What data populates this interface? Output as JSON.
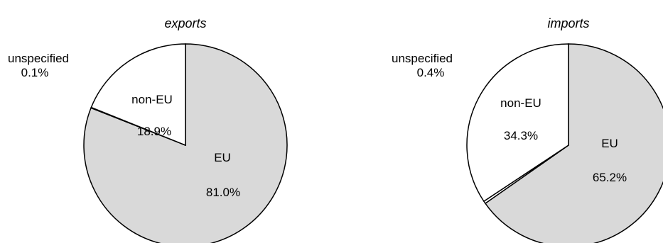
{
  "chart_data": [
    {
      "type": "pie",
      "title": "exports",
      "slices": [
        {
          "label": "EU",
          "value": 81.0,
          "value_label": "81.0%",
          "color": "#d9d9d9"
        },
        {
          "label": "unspecified",
          "value": 0.1,
          "value_label": "0.1%",
          "color": "#ffffff"
        },
        {
          "label": "non-EU",
          "value": 18.9,
          "value_label": "18.9%",
          "color": "#ffffff"
        }
      ],
      "start_angle": "12 o'clock",
      "direction": "clockwise"
    },
    {
      "type": "pie",
      "title": "imports",
      "slices": [
        {
          "label": "EU",
          "value": 65.2,
          "value_label": "65.2%",
          "color": "#d9d9d9"
        },
        {
          "label": "unspecified",
          "value": 0.4,
          "value_label": "0.4%",
          "color": "#ffffff"
        },
        {
          "label": "non-EU",
          "value": 34.3,
          "value_label": "34.3%",
          "color": "#ffffff"
        }
      ],
      "start_angle": "12 o'clock",
      "direction": "clockwise"
    }
  ]
}
